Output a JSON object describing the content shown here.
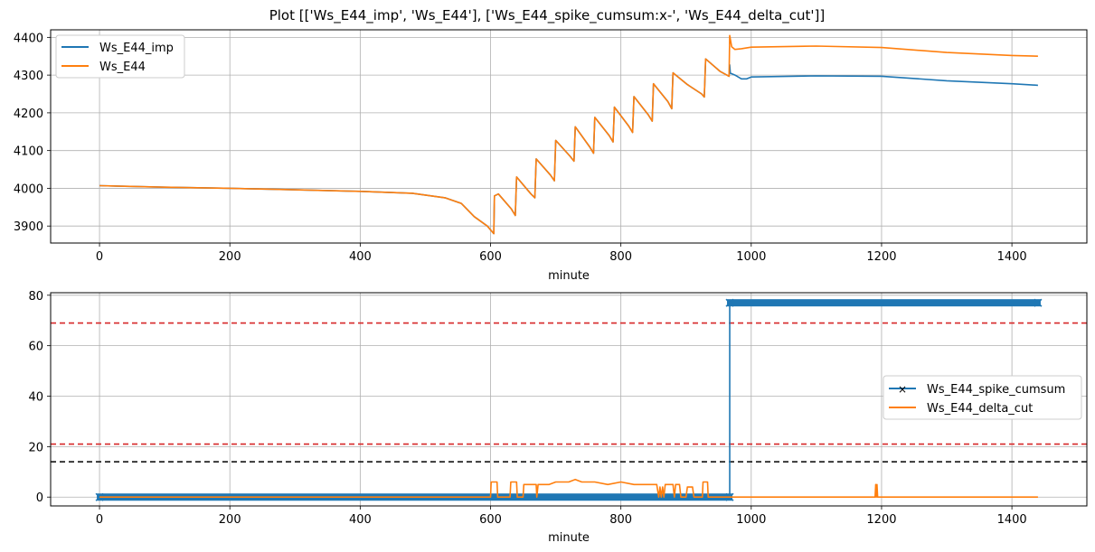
{
  "figure": {
    "suptitle": "Plot [['Ws_E44_imp', 'Ws_E44'], ['Ws_E44_spike_cumsum:x-', 'Ws_E44_delta_cut']]"
  },
  "colors": {
    "blue": "#1f77b4",
    "orange": "#ff7f0e",
    "red": "#d62728",
    "black": "#000000",
    "grid": "#b0b0b0"
  },
  "chart_data": [
    {
      "type": "line",
      "xlabel": "minute",
      "ylabel": "",
      "xlim": [
        -75,
        1515
      ],
      "ylim": [
        3855,
        4420
      ],
      "xticks": [
        0,
        200,
        400,
        600,
        800,
        1000,
        1200,
        1400
      ],
      "yticks": [
        3900,
        4000,
        4100,
        4200,
        4300,
        4400
      ],
      "grid": true,
      "legend": "top-left",
      "series": [
        {
          "name": "Ws_E44_imp",
          "color": "blue",
          "points": [
            [
              0,
              4007
            ],
            [
              100,
              4003
            ],
            [
              200,
              4000
            ],
            [
              300,
              3996
            ],
            [
              400,
              3992
            ],
            [
              480,
              3987
            ],
            [
              530,
              3975
            ],
            [
              555,
              3960
            ],
            [
              575,
              3925
            ],
            [
              595,
              3900
            ],
            [
              605,
              3880
            ],
            [
              606,
              3980
            ],
            [
              612,
              3985
            ],
            [
              632,
              3945
            ],
            [
              638,
              3928
            ],
            [
              640,
              4030
            ],
            [
              662,
              3985
            ],
            [
              668,
              3975
            ],
            [
              670,
              4078
            ],
            [
              692,
              4035
            ],
            [
              698,
              4020
            ],
            [
              700,
              4127
            ],
            [
              722,
              4085
            ],
            [
              728,
              4072
            ],
            [
              730,
              4163
            ],
            [
              752,
              4110
            ],
            [
              758,
              4093
            ],
            [
              760,
              4188
            ],
            [
              782,
              4140
            ],
            [
              788,
              4123
            ],
            [
              790,
              4215
            ],
            [
              812,
              4165
            ],
            [
              818,
              4148
            ],
            [
              820,
              4243
            ],
            [
              842,
              4195
            ],
            [
              848,
              4178
            ],
            [
              850,
              4277
            ],
            [
              872,
              4230
            ],
            [
              878,
              4211
            ],
            [
              880,
              4306
            ],
            [
              902,
              4275
            ],
            [
              924,
              4250
            ],
            [
              928,
              4242
            ],
            [
              930,
              4343
            ],
            [
              952,
              4310
            ],
            [
              966,
              4297
            ],
            [
              967,
              4327
            ],
            [
              968,
              4305
            ],
            [
              975,
              4300
            ],
            [
              985,
              4290
            ],
            [
              993,
              4290
            ],
            [
              1000,
              4295
            ],
            [
              1100,
              4298
            ],
            [
              1200,
              4297
            ],
            [
              1300,
              4285
            ],
            [
              1400,
              4277
            ],
            [
              1440,
              4273
            ]
          ]
        },
        {
          "name": "Ws_E44",
          "color": "orange",
          "points": [
            [
              0,
              4007
            ],
            [
              100,
              4003
            ],
            [
              200,
              4000
            ],
            [
              300,
              3996
            ],
            [
              400,
              3992
            ],
            [
              480,
              3987
            ],
            [
              530,
              3975
            ],
            [
              555,
              3960
            ],
            [
              575,
              3925
            ],
            [
              595,
              3900
            ],
            [
              605,
              3880
            ],
            [
              606,
              3980
            ],
            [
              612,
              3985
            ],
            [
              632,
              3945
            ],
            [
              638,
              3928
            ],
            [
              640,
              4030
            ],
            [
              662,
              3985
            ],
            [
              668,
              3975
            ],
            [
              670,
              4078
            ],
            [
              692,
              4035
            ],
            [
              698,
              4020
            ],
            [
              700,
              4127
            ],
            [
              722,
              4085
            ],
            [
              728,
              4072
            ],
            [
              730,
              4163
            ],
            [
              752,
              4110
            ],
            [
              758,
              4093
            ],
            [
              760,
              4188
            ],
            [
              782,
              4140
            ],
            [
              788,
              4123
            ],
            [
              790,
              4215
            ],
            [
              812,
              4165
            ],
            [
              818,
              4148
            ],
            [
              820,
              4243
            ],
            [
              842,
              4195
            ],
            [
              848,
              4178
            ],
            [
              850,
              4277
            ],
            [
              872,
              4230
            ],
            [
              878,
              4211
            ],
            [
              880,
              4306
            ],
            [
              902,
              4275
            ],
            [
              924,
              4250
            ],
            [
              928,
              4242
            ],
            [
              930,
              4343
            ],
            [
              952,
              4310
            ],
            [
              966,
              4297
            ],
            [
              967,
              4405
            ],
            [
              970,
              4375
            ],
            [
              975,
              4368
            ],
            [
              985,
              4370
            ],
            [
              1000,
              4374
            ],
            [
              1100,
              4377
            ],
            [
              1200,
              4373
            ],
            [
              1300,
              4360
            ],
            [
              1400,
              4352
            ],
            [
              1440,
              4350
            ]
          ]
        }
      ]
    },
    {
      "type": "line",
      "xlabel": "minute",
      "ylabel": "",
      "xlim": [
        -75,
        1515
      ],
      "ylim": [
        -3.5,
        81
      ],
      "xticks": [
        0,
        200,
        400,
        600,
        800,
        1000,
        1200,
        1400
      ],
      "yticks": [
        0,
        20,
        40,
        60,
        80
      ],
      "grid": true,
      "legend": "center-right",
      "hlines": [
        {
          "y": 69,
          "color": "red",
          "style": "dashed"
        },
        {
          "y": 21,
          "color": "red",
          "style": "dashed"
        },
        {
          "y": 14,
          "color": "black",
          "style": "dashed"
        }
      ],
      "series": [
        {
          "name": "Ws_E44_spike_cumsum",
          "color": "blue",
          "marker": "x",
          "step_at": 967,
          "before": 0,
          "after": 77,
          "x_range": [
            0,
            1440
          ]
        },
        {
          "name": "Ws_E44_delta_cut",
          "color": "orange",
          "points": [
            [
              0,
              0
            ],
            [
              600,
              0
            ],
            [
              601,
              6
            ],
            [
              610,
              6
            ],
            [
              611,
              0
            ],
            [
              630,
              0
            ],
            [
              631,
              6
            ],
            [
              640,
              6
            ],
            [
              641,
              0
            ],
            [
              650,
              0
            ],
            [
              651,
              5
            ],
            [
              670,
              5
            ],
            [
              671,
              0
            ],
            [
              673,
              5
            ],
            [
              690,
              5
            ],
            [
              700,
              6
            ],
            [
              720,
              6
            ],
            [
              730,
              7
            ],
            [
              740,
              6
            ],
            [
              760,
              6
            ],
            [
              780,
              5
            ],
            [
              800,
              6
            ],
            [
              820,
              5
            ],
            [
              840,
              5
            ],
            [
              855,
              5
            ],
            [
              858,
              0
            ],
            [
              860,
              4
            ],
            [
              862,
              0
            ],
            [
              864,
              4
            ],
            [
              866,
              0
            ],
            [
              868,
              5
            ],
            [
              880,
              5
            ],
            [
              882,
              0
            ],
            [
              884,
              5
            ],
            [
              890,
              5
            ],
            [
              892,
              0
            ],
            [
              900,
              0
            ],
            [
              902,
              4
            ],
            [
              910,
              4
            ],
            [
              912,
              0
            ],
            [
              925,
              0
            ],
            [
              926,
              6
            ],
            [
              933,
              6
            ],
            [
              934,
              0
            ],
            [
              1190,
              0
            ],
            [
              1191,
              5
            ],
            [
              1192,
              0
            ],
            [
              1193,
              5
            ],
            [
              1194,
              0
            ],
            [
              1440,
              0
            ]
          ]
        }
      ]
    }
  ]
}
